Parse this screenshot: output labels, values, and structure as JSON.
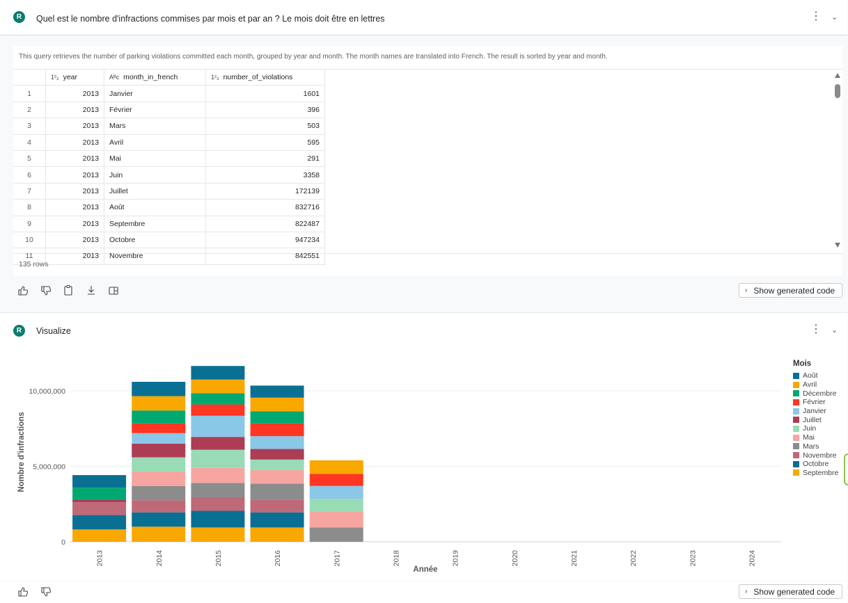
{
  "question": {
    "avatar": "R",
    "title": "Quel est le nombre d'infractions commises par mois et par an ? Le mois doit être en lettres"
  },
  "result": {
    "description": "This query retrieves the number of parking violations committed each month, grouped by year and month. The month names are translated into French. The result is sorted by year and month.",
    "columns": [
      {
        "type_icon": "1²₃",
        "name": "year"
      },
      {
        "type_icon": "Aᴮc",
        "name": "month_in_french"
      },
      {
        "type_icon": "1²₃",
        "name": "number_of_violations"
      }
    ],
    "rows": [
      [
        "1",
        "2013",
        "Janvier",
        "1601"
      ],
      [
        "2",
        "2013",
        "Février",
        "396"
      ],
      [
        "3",
        "2013",
        "Mars",
        "503"
      ],
      [
        "4",
        "2013",
        "Avril",
        "595"
      ],
      [
        "5",
        "2013",
        "Mai",
        "291"
      ],
      [
        "6",
        "2013",
        "Juin",
        "3358"
      ],
      [
        "7",
        "2013",
        "Juillet",
        "172139"
      ],
      [
        "8",
        "2013",
        "Août",
        "832716"
      ],
      [
        "9",
        "2013",
        "Septembre",
        "822487"
      ],
      [
        "10",
        "2013",
        "Octobre",
        "947234"
      ],
      [
        "11",
        "2013",
        "Novembre",
        "842551"
      ]
    ],
    "row_count": "135 rows",
    "show_code_label": "Show generated code"
  },
  "visualize": {
    "avatar": "R",
    "title": "Visualize",
    "show_code_label": "Show generated code"
  },
  "icons": {
    "kebab": "more-vertical-icon",
    "chevron": "chevron-down-icon",
    "thumbs_up": "thumbs-up-icon",
    "thumbs_down": "thumbs-down-icon",
    "copy": "clipboard-icon",
    "download": "download-icon",
    "sheet": "open-in-sheet-icon"
  },
  "chart_data": {
    "type": "bar",
    "stacked": true,
    "xlabel": "Année",
    "ylabel": "Nombre d'infractions",
    "ylim": [
      0,
      12000000
    ],
    "yticks": [
      0,
      5000000,
      10000000
    ],
    "ytick_labels": [
      "0",
      "5,000,000",
      "10,000,000"
    ],
    "legend_title": "Mois",
    "legend_position": "right",
    "categories": [
      "2013",
      "2014",
      "2015",
      "2016",
      "2017",
      "2018",
      "2019",
      "2020",
      "2021",
      "2022",
      "2023",
      "2024"
    ],
    "series": [
      {
        "name": "Septembre",
        "color": "#f9a800",
        "values": [
          820000,
          1000000,
          950000,
          950000,
          0,
          0,
          0,
          0,
          0,
          0,
          0,
          0
        ]
      },
      {
        "name": "Octobre",
        "color": "#0a7093",
        "values": [
          950000,
          950000,
          1100000,
          1000000,
          0,
          0,
          0,
          0,
          0,
          0,
          0,
          0
        ]
      },
      {
        "name": "Novembre",
        "color": "#bf6878",
        "values": [
          840000,
          800000,
          900000,
          850000,
          0,
          0,
          0,
          0,
          0,
          0,
          0,
          0
        ]
      },
      {
        "name": "Mars",
        "color": "#8c8c8c",
        "values": [
          500,
          950000,
          950000,
          1050000,
          950000,
          0,
          0,
          0,
          0,
          0,
          0,
          0
        ]
      },
      {
        "name": "Mai",
        "color": "#f7a5a0",
        "values": [
          300,
          950000,
          1000000,
          900000,
          1050000,
          0,
          0,
          0,
          0,
          0,
          0,
          0
        ]
      },
      {
        "name": "Juin",
        "color": "#99dbb4",
        "values": [
          3400,
          950000,
          1200000,
          700000,
          850000,
          0,
          0,
          0,
          0,
          0,
          0,
          0
        ]
      },
      {
        "name": "Juillet",
        "color": "#ad3c55",
        "values": [
          172000,
          900000,
          850000,
          700000,
          0,
          0,
          0,
          0,
          0,
          0,
          0,
          0
        ]
      },
      {
        "name": "Janvier",
        "color": "#8bc7e6",
        "values": [
          1600,
          700000,
          1400000,
          850000,
          850000,
          0,
          0,
          0,
          0,
          0,
          0,
          0
        ]
      },
      {
        "name": "Février",
        "color": "#ff3621",
        "values": [
          400,
          650000,
          750000,
          850000,
          800000,
          0,
          0,
          0,
          0,
          0,
          0,
          0
        ]
      },
      {
        "name": "Décembre",
        "color": "#00a971",
        "values": [
          800000,
          850000,
          750000,
          800000,
          0,
          0,
          0,
          0,
          0,
          0,
          0,
          0
        ]
      },
      {
        "name": "Avril",
        "color": "#f9a800",
        "values": [
          600,
          950000,
          900000,
          900000,
          900000,
          0,
          0,
          0,
          0,
          0,
          0,
          0
        ]
      },
      {
        "name": "Août",
        "color": "#0a7093",
        "values": [
          830000,
          950000,
          900000,
          800000,
          0,
          0,
          0,
          0,
          0,
          0,
          0,
          0
        ]
      }
    ],
    "legend_order": [
      "Août",
      "Avril",
      "Décembre",
      "Février",
      "Janvier",
      "Juillet",
      "Juin",
      "Mai",
      "Mars",
      "Novembre",
      "Octobre",
      "Septembre"
    ]
  }
}
